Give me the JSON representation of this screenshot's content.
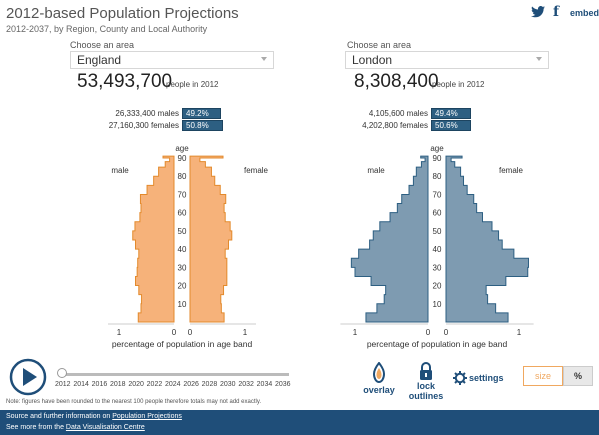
{
  "header": {
    "title": "2012-based Population Projections",
    "subtitle": "2012-2037, by Region, County and Local Authority",
    "embed_label": "embed"
  },
  "panels": [
    {
      "choose_label": "Choose an area",
      "area": "England",
      "total": "53,493,700",
      "total_unit": "people in 2012",
      "males_label": "26,333,400 males",
      "males_pct": "49.2%",
      "males_share": 0.492,
      "females_label": "27,160,300 females",
      "females_pct": "50.8%",
      "females_share": 0.508
    },
    {
      "choose_label": "Choose an area",
      "area": "London",
      "total": "8,308,400",
      "total_unit": "people in 2012",
      "males_label": "4,105,600 males",
      "males_pct": "49.4%",
      "males_share": 0.494,
      "females_label": "4,202,800 females",
      "females_pct": "50.6%",
      "females_share": 0.506
    }
  ],
  "chart_data": [
    {
      "type": "bar",
      "subtype": "population-pyramid",
      "area": "England",
      "year": 2012,
      "age_title": "age",
      "male_label": "male",
      "female_label": "female",
      "xlabel": "percentage of population in age band",
      "x_ticks": [
        "1",
        "0",
        "0",
        "1"
      ],
      "xlim": [
        0,
        1.2
      ],
      "age_ticks": [
        10,
        20,
        30,
        40,
        50,
        60,
        70,
        80,
        90
      ],
      "ylim": [
        0,
        90
      ],
      "color": "#f6b27a",
      "outline_color": "#e38a2c",
      "ages": [
        0,
        5,
        10,
        15,
        20,
        25,
        30,
        35,
        40,
        45,
        50,
        55,
        60,
        65,
        70,
        75,
        80,
        85,
        88,
        90
      ],
      "male": [
        0.65,
        0.6,
        0.59,
        0.64,
        0.7,
        0.67,
        0.66,
        0.64,
        0.7,
        0.75,
        0.71,
        0.62,
        0.6,
        0.61,
        0.49,
        0.37,
        0.28,
        0.16,
        0.08,
        0.2
      ],
      "female": [
        0.62,
        0.57,
        0.56,
        0.61,
        0.67,
        0.67,
        0.67,
        0.64,
        0.7,
        0.76,
        0.73,
        0.64,
        0.62,
        0.65,
        0.55,
        0.45,
        0.39,
        0.28,
        0.18,
        0.6
      ]
    },
    {
      "type": "bar",
      "subtype": "population-pyramid",
      "area": "London",
      "year": 2012,
      "age_title": "age",
      "male_label": "male",
      "female_label": "female",
      "xlabel": "percentage of population in age band",
      "x_ticks": [
        "1",
        "0",
        "0",
        "1"
      ],
      "xlim": [
        0,
        1.2
      ],
      "age_ticks": [
        10,
        20,
        30,
        40,
        50,
        60,
        70,
        80,
        90
      ],
      "ylim": [
        0,
        90
      ],
      "color": "#7e9bb1",
      "outline_color": "#2d5f82",
      "ages": [
        0,
        5,
        10,
        15,
        20,
        25,
        30,
        35,
        40,
        45,
        50,
        55,
        60,
        65,
        70,
        75,
        80,
        85,
        88,
        90
      ],
      "male": [
        0.85,
        0.7,
        0.6,
        0.58,
        0.78,
        1.0,
        1.05,
        0.95,
        0.8,
        0.75,
        0.66,
        0.52,
        0.42,
        0.36,
        0.26,
        0.2,
        0.16,
        0.09,
        0.04,
        0.1
      ],
      "female": [
        0.85,
        0.68,
        0.57,
        0.55,
        0.82,
        1.12,
        1.13,
        0.93,
        0.77,
        0.72,
        0.63,
        0.5,
        0.42,
        0.38,
        0.29,
        0.24,
        0.2,
        0.12,
        0.07,
        0.22
      ]
    }
  ],
  "timeline": {
    "years": [
      "2012",
      "2014",
      "2016",
      "2018",
      "2020",
      "2022",
      "2024",
      "2026",
      "2028",
      "2030",
      "2032",
      "2034",
      "2036"
    ],
    "current_year": "2012"
  },
  "controls": {
    "overlay_label": "overlay",
    "lock_label_1": "lock",
    "lock_label_2": "outlines",
    "settings_label": "settings",
    "size_label": "size",
    "percent_label": "%"
  },
  "note": "Note: figures have been rounded to the nearest 100 people therefore totals may not add exactly.",
  "footer": {
    "line1_prefix": "Source and further information on ",
    "line1_link": "Population Projections",
    "line2_prefix": "See more from the ",
    "line2_link": "Data Visualisation Centre"
  },
  "colors": {
    "brand": "#1f4e79",
    "england_fill": "#f6b27a",
    "london_fill": "#7e9bb1",
    "size_accent": "#f0a860"
  }
}
